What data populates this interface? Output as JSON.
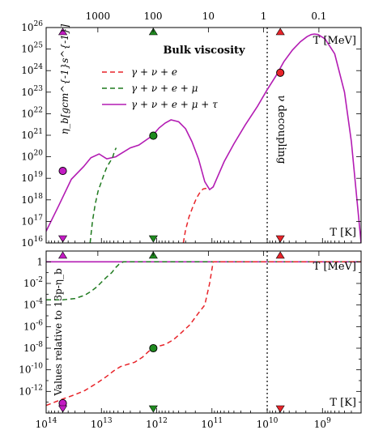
{
  "chart_data": [
    {
      "type": "line",
      "panel": "top",
      "title": "Bulk viscosity",
      "ylabel": "η_b[gcm^{-1}s^{-1}]",
      "xscale": "log-reversed",
      "yscale": "log",
      "xlim_K": [
        100000000000000.0,
        200000000.0
      ],
      "ylim": [
        1e+16,
        1e+26
      ],
      "yticks": [
        {
          "v": 1e+16,
          "label": "10^16"
        },
        {
          "v": 1e+17,
          "label": "10^17"
        },
        {
          "v": 1e+18,
          "label": "10^18"
        },
        {
          "v": 1e+19,
          "label": "10^19"
        },
        {
          "v": 1e+20,
          "label": "10^20"
        },
        {
          "v": 1e+21,
          "label": "10^21"
        },
        {
          "v": 1e+22,
          "label": "10^22"
        },
        {
          "v": 1e+23,
          "label": "10^23"
        },
        {
          "v": 1e+24,
          "label": "10^24"
        },
        {
          "v": 1e+25,
          "label": "10^25"
        },
        {
          "v": 1e+26,
          "label": "10^26"
        }
      ],
      "top_axis": {
        "label": "T [MeV]",
        "ticks": [
          {
            "T_K": 11600000000000.0,
            "label": "1000"
          },
          {
            "T_K": 1160000000000.0,
            "label": "100"
          },
          {
            "T_K": 116000000000.0,
            "label": "10"
          },
          {
            "T_K": 11600000000.0,
            "label": "1"
          },
          {
            "T_K": 1160000000.0,
            "label": "0.1"
          }
        ]
      },
      "bottom_label": "T [K]",
      "annotation": "ν decoupling",
      "decoupling_T_K": 10000000000.0,
      "legend": {
        "placement": "upper-left",
        "entries": [
          {
            "label": "γ + ν + e",
            "style": "dashed",
            "color": "#e8242a"
          },
          {
            "label": "γ + ν + e + μ",
            "style": "dashed",
            "color": "#1f7a1f"
          },
          {
            "label": "γ + ν + e + μ + τ",
            "style": "solid",
            "color": "#b31cb3"
          }
        ]
      },
      "series": [
        {
          "name": "γ + ν + e + μ + τ",
          "color": "#b31cb3",
          "style": "solid",
          "x": [
            100000000000000.0,
            60000000000000.0,
            35000000000000.0,
            21000000000000.0,
            15500000000000.0,
            11000000000000.0,
            8000000000000.0,
            5500000000000.0,
            3000000000000.0,
            2100000000000.0,
            1450000000000.0,
            1200000000000.0,
            900000000000.0,
            700000000000.0,
            550000000000.0,
            400000000000.0,
            300000000000.0,
            230000000000.0,
            175000000000.0,
            135000000000.0,
            110000000000.0,
            95000000000.0,
            80000000000.0,
            60000000000.0,
            40000000000.0,
            25000000000.0,
            15000000000.0,
            10000000000.0,
            7000000000.0,
            5000000000.0,
            3500000000.0,
            2500000000.0,
            1900000000.0,
            1600000000.0,
            1400000000.0,
            1200000000.0,
            900000000.0,
            600000000.0,
            400000000.0,
            300000000.0,
            200000000.0
          ],
          "y": [
            3.5e+16,
            5e+17,
            9e+18,
            3.5e+19,
            9e+19,
            1.35e+20,
            8e+19,
            1e+20,
            2.6e+20,
            3.5e+20,
            6.8e+20,
            9.5e+20,
            2.2e+21,
            3.7e+21,
            5.2e+21,
            4.2e+21,
            2e+21,
            5e+20,
            8e+19,
            7e+18,
            3e+18,
            4e+18,
            1.1e+19,
            6e+19,
            4e+20,
            3e+21,
            2.2e+22,
            1.3e+23,
            5.5e+23,
            2.6e+24,
            9e+24,
            2.2e+25,
            3.8e+25,
            4.7e+25,
            5e+25,
            4.7e+25,
            3e+25,
            6e+24,
            1e+23,
            5e+20,
            1e+16
          ]
        },
        {
          "name": "γ + ν + e + μ",
          "color": "#1f7a1f",
          "style": "dashed",
          "x": [
            16000000000000.0,
            14500000000000.0,
            13000000000000.0,
            11500000000000.0,
            10000000000000.0,
            9000000000000.0,
            8100000000000.0,
            7200000000000.0,
            6300000000000.0,
            5800000000000.0,
            5400000000000.0
          ],
          "y": [
            1e+16,
            1e+17,
            6e+17,
            2.5e+18,
            7e+18,
            1.5e+19,
            3e+19,
            5.2e+19,
            9e+19,
            1.8e+20,
            2.6e+20
          ]
        },
        {
          "name": "γ + ν + e",
          "color": "#e8242a",
          "style": "dashed",
          "x": [
            330000000000.0,
            300000000000.0,
            260000000000.0,
            220000000000.0,
            190000000000.0,
            165000000000.0,
            145000000000.0,
            130000000000.0,
            120000000000.0
          ],
          "y": [
            1e+16,
            4e+16,
            1.6e+17,
            5e+17,
            1.2e+18,
            2.2e+18,
            3.2e+18,
            3.4e+18,
            3.2e+18
          ]
        }
      ],
      "markers": [
        {
          "T_K": 50000000000000.0,
          "y": 2.2e+19,
          "color": "#c31cc3"
        },
        {
          "T_K": 1150000000000.0,
          "y": 9.5e+20,
          "color": "#1f8a1f"
        },
        {
          "T_K": 5800000000.0,
          "y": 8e+23,
          "color": "#e8242a"
        }
      ]
    },
    {
      "type": "line",
      "panel": "bottom",
      "ylabel": "Values relative to 13p-η_b",
      "xscale": "log-reversed",
      "yscale": "log",
      "xlim_K": [
        100000000000000.0,
        200000000.0
      ],
      "ylim": [
        1e-14,
        10
      ],
      "xticks": [
        {
          "T_K": 100000000000000.0,
          "label": "10^14"
        },
        {
          "T_K": 10000000000000.0,
          "label": "10^13"
        },
        {
          "T_K": 1000000000000.0,
          "label": "10^12"
        },
        {
          "T_K": 100000000000.0,
          "label": "10^11"
        },
        {
          "T_K": 10000000000.0,
          "label": "10^10"
        },
        {
          "T_K": 1000000000.0,
          "label": "10^9"
        }
      ],
      "yticks": [
        {
          "v": 1,
          "label": "1"
        },
        {
          "v": 0.01,
          "label": "10^-2"
        },
        {
          "v": 0.0001,
          "label": "10^-4"
        },
        {
          "v": 1e-06,
          "label": "10^-6"
        },
        {
          "v": 1e-08,
          "label": "10^-8"
        },
        {
          "v": 1e-10,
          "label": "10^-10"
        },
        {
          "v": 1e-12,
          "label": "10^-12"
        }
      ],
      "top_label": "T [MeV]",
      "bottom_label": "T [K]",
      "series": [
        {
          "name": "γ + ν + e + μ + τ",
          "color": "#b31cb3",
          "style": "solid",
          "x": [
            100000000000000.0,
            200000000.0
          ],
          "y": [
            1,
            1
          ]
        },
        {
          "name": "γ + ν + e + μ",
          "color": "#1f7a1f",
          "style": "dashed",
          "x": [
            100000000000000.0,
            50000000000000.0,
            30000000000000.0,
            20000000000000.0,
            15000000000000.0,
            12000000000000.0,
            10000000000000.0,
            8000000000000.0,
            6500000000000.0,
            5500000000000.0,
            4800000000000.0,
            4000000000000.0,
            3000000000000.0,
            2000000000000.0,
            1000000000000.0,
            200000000.0
          ],
          "y": [
            0.0003,
            0.0003,
            0.0004,
            0.0008,
            0.002,
            0.005,
            0.013,
            0.04,
            0.1,
            0.3,
            0.6,
            1,
            1,
            1,
            1,
            1
          ]
        },
        {
          "name": "γ + ν + e",
          "color": "#e8242a",
          "style": "dashed",
          "x": [
            100000000000000.0,
            50000000000000.0,
            30000000000000.0,
            20000000000000.0,
            12000000000000.0,
            8000000000000.0,
            6000000000000.0,
            4500000000000.0,
            3500000000000.0,
            2500000000000.0,
            1800000000000.0,
            1400000000000.0,
            1150000000000.0,
            900000000000.0,
            700000000000.0,
            500000000000.0,
            350000000000.0,
            250000000000.0,
            180000000000.0,
            135000000000.0,
            110000000000.0,
            95000000000.0,
            200000000.0
          ],
          "y": [
            5e-14,
            2e-13,
            5e-13,
            1.2e-12,
            6e-12,
            2.5e-11,
            8e-11,
            2e-10,
            3e-10,
            5e-10,
            1.5e-09,
            5e-09,
            1e-08,
            1.6e-08,
            2.2e-08,
            6e-08,
            3e-07,
            1.5e-06,
            1.5e-05,
            0.0001,
            0.01,
            1,
            1
          ]
        }
      ],
      "markers": [
        {
          "T_K": 50000000000000.0,
          "y": 8e-14,
          "color": "#c31cc3"
        },
        {
          "T_K": 1150000000000.0,
          "y": 1e-08,
          "color": "#1f8a1f"
        }
      ]
    }
  ],
  "triangles": [
    {
      "T_K": 50000000000000.0,
      "color": "#c31cc3"
    },
    {
      "T_K": 1150000000000.0,
      "color": "#1f8a1f"
    },
    {
      "T_K": 5800000000.0,
      "color": "#e8242a"
    }
  ],
  "labels": {
    "top_title": "Bulk viscosity",
    "top_ylabel": "η_b[gcm^{-1}s^{-1}]",
    "bottom_ylabel": "Values relative to 13p-η_b",
    "mev_label": "T [MeV]",
    "k_label": "T [K]",
    "decoupling": "ν decoupling"
  }
}
